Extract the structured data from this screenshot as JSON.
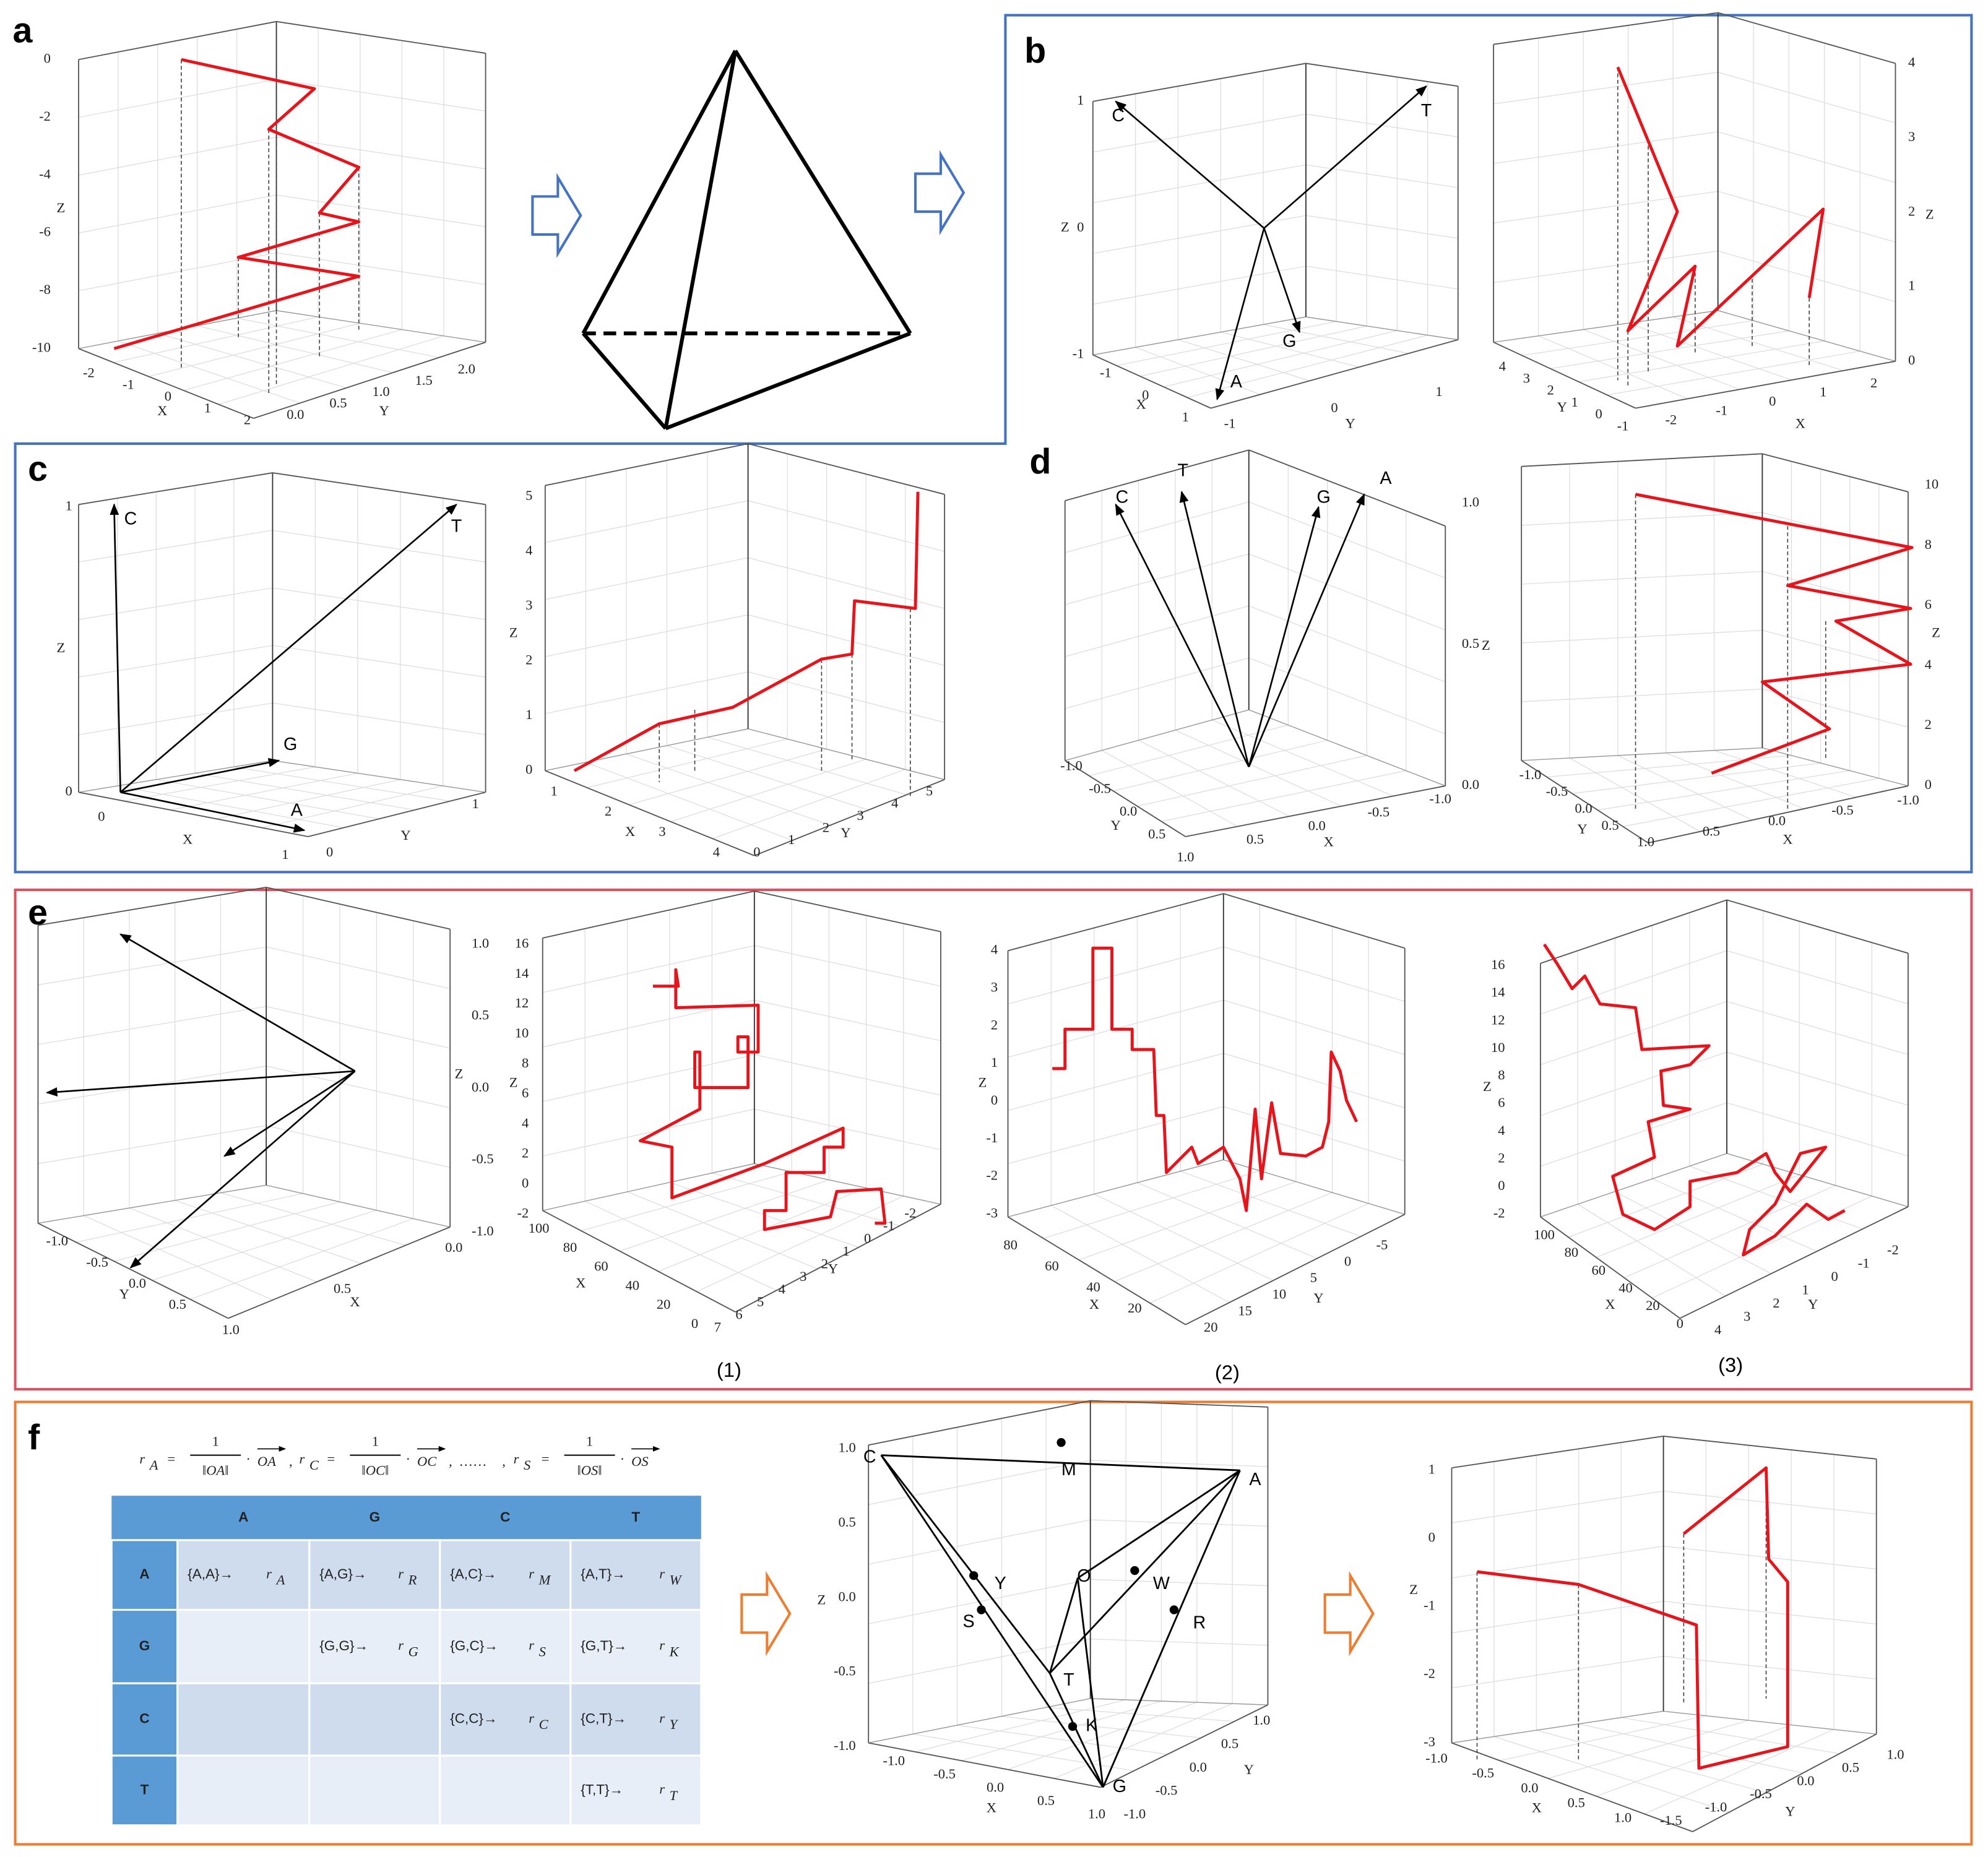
{
  "panel_labels": [
    "a",
    "b",
    "c",
    "d",
    "e",
    "f"
  ],
  "plots": [
    {
      "z_label": "Z",
      "x_label": "X",
      "y_label": "Y",
      "z_ticks": [
        "0",
        "-2",
        "-4",
        "-6",
        "-8",
        "-10"
      ],
      "x_ticks": [
        "-2",
        "-1",
        "0",
        "1",
        "2"
      ],
      "y_ticks": [
        "0.0",
        "0.5",
        "1.0",
        "1.5",
        "2.0"
      ]
    },
    {
      "z_label": "Z",
      "x_label": "X",
      "y_label": "Y",
      "z_ticks": [
        "1",
        "0",
        "-1"
      ],
      "x_ticks": [
        "-1",
        "0",
        "1"
      ],
      "y_ticks": [
        "-1",
        "0",
        "1"
      ],
      "vector_labels": [
        "C",
        "T",
        "G",
        "A"
      ]
    },
    {
      "z_label": "Z",
      "x_label": "X",
      "y_label": "Y",
      "z_ticks": [
        "0",
        "1",
        "2",
        "3",
        "4"
      ],
      "x_ticks": [
        "-2",
        "-1",
        "0",
        "1",
        "2"
      ],
      "y_ticks": [
        "4",
        "3",
        "2",
        "1",
        "0",
        "-1"
      ]
    },
    {
      "z_label": "Z",
      "x_label": "X",
      "y_label": "Y",
      "z_ticks": [
        "1",
        "0"
      ],
      "x_ticks": [
        "0",
        "1"
      ],
      "y_ticks": [
        "0",
        "1"
      ],
      "vector_labels": [
        "C",
        "T",
        "G",
        "A"
      ]
    },
    {
      "z_label": "Z",
      "x_label": "X",
      "y_label": "Y",
      "z_ticks": [
        "0",
        "1",
        "2",
        "3",
        "4",
        "5"
      ],
      "x_ticks": [
        "1",
        "2",
        "3",
        "4"
      ],
      "y_ticks": [
        "0",
        "1",
        "2",
        "3",
        "4",
        "5"
      ]
    },
    {
      "z_label": "Z",
      "x_label": "X",
      "y_label": "Y",
      "z_ticks": [
        "1.0",
        "0.5",
        "0.0"
      ],
      "x_ticks": [
        "-1.0",
        "-0.5",
        "0.0",
        "0.5"
      ],
      "y_ticks": [
        "-1.0",
        "-0.5",
        "0.0",
        "0.5",
        "1.0"
      ],
      "vector_labels": [
        "C",
        "T",
        "G",
        "A"
      ]
    },
    {
      "z_label": "Z",
      "x_label": "X",
      "y_label": "Y",
      "z_ticks": [
        "0",
        "2",
        "4",
        "6",
        "8",
        "10"
      ],
      "x_ticks": [
        "1.0",
        "0.5",
        "0.0",
        "-0.5",
        "-1.0"
      ],
      "y_ticks": [
        "-1.0",
        "-0.5",
        "0.0",
        "0.5"
      ]
    },
    {
      "z_label": "Z",
      "x_label": "X",
      "y_label": "Y",
      "z_ticks": [
        "1.0",
        "0.5",
        "0.0",
        "-0.5",
        "-1.0"
      ],
      "x_ticks": [
        "0.0",
        "0.5",
        "1.0"
      ],
      "y_ticks": [
        "-1.0",
        "-0.5",
        "0.0",
        "0.5"
      ]
    },
    {
      "z_label": "Z",
      "x_label": "X",
      "y_label": "Y",
      "z_ticks": [
        "16",
        "14",
        "12",
        "10",
        "8",
        "6",
        "4",
        "2",
        "0",
        "-2"
      ],
      "x_ticks": [
        "100",
        "80",
        "60",
        "40",
        "20",
        "0"
      ],
      "y_ticks": [
        "7",
        "6",
        "5",
        "4",
        "3",
        "2",
        "1",
        "0",
        "-1",
        "-2"
      ]
    },
    {
      "z_label": "Z",
      "x_label": "X",
      "y_label": "Y",
      "z_ticks": [
        "4",
        "3",
        "2",
        "1",
        "0",
        "-1",
        "-2",
        "-3"
      ],
      "x_ticks": [
        "80",
        "60",
        "40",
        "20"
      ],
      "y_ticks": [
        "20",
        "15",
        "10",
        "5",
        "0",
        "-5"
      ]
    },
    {
      "z_label": "Z",
      "x_label": "X",
      "y_label": "Y",
      "z_ticks": [
        "16",
        "14",
        "12",
        "10",
        "8",
        "6",
        "4",
        "2",
        "0",
        "-2"
      ],
      "x_ticks": [
        "100",
        "80",
        "60",
        "40",
        "20",
        "0"
      ],
      "y_ticks": [
        "4",
        "3",
        "2",
        "1",
        "0",
        "-1",
        "-2"
      ]
    },
    {
      "z_label": "Z",
      "x_label": "X",
      "y_label": "Y",
      "z_ticks": [
        "1.0",
        "0.5",
        "0.0",
        "-0.5",
        "-1.0"
      ],
      "x_ticks": [
        "-1.0",
        "-0.5",
        "0.0",
        "0.5",
        "1.0"
      ],
      "y_ticks": [
        "1.0",
        "0.5",
        "0.0",
        "-0.5",
        "-1.0"
      ],
      "point_labels": [
        "C",
        "A",
        "M",
        "O",
        "Y",
        "S",
        "W",
        "R",
        "T",
        "K",
        "G"
      ]
    },
    {
      "z_label": "Z",
      "x_label": "X",
      "y_label": "Y",
      "z_ticks": [
        "1",
        "0",
        "-1",
        "-2",
        "-3"
      ],
      "x_ticks": [
        "-1.0",
        "-0.5",
        "0.0",
        "0.5",
        "1.0"
      ],
      "y_ticks": [
        "-1.5",
        "-1.0",
        "-0.5",
        "0.0",
        "0.5",
        "1.0"
      ]
    }
  ],
  "subplot_labels": [
    "(1)",
    "(2)",
    "(3)"
  ],
  "formula": {
    "terms": [
      {
        "var": "r",
        "sub": "A",
        "equals": "=",
        "numerator": "1",
        "denominator": "‖OA‖",
        "dot": "·",
        "vector": "OA"
      },
      {
        "var": "r",
        "sub": "C",
        "equals": "=",
        "numerator": "1",
        "denominator": "‖OC‖",
        "dot": "·",
        "vector": "OC"
      },
      {
        "var": "r",
        "sub": "S",
        "equals": "=",
        "numerator": "1",
        "denominator": "‖OS‖",
        "dot": "·",
        "vector": "OS"
      }
    ],
    "separator": ",",
    "ellipsis": "……"
  },
  "table": {
    "columns": [
      "A",
      "G",
      "C",
      "T"
    ],
    "rows": [
      {
        "label": "A",
        "cells": [
          {
            "pair": "{A,A}→",
            "var": "r",
            "sub": "A"
          },
          {
            "pair": "{A,G}→",
            "var": "r",
            "sub": "R"
          },
          {
            "pair": "{A,C}→",
            "var": "r",
            "sub": "M"
          },
          {
            "pair": "{A,T}→",
            "var": "r",
            "sub": "W"
          }
        ]
      },
      {
        "label": "G",
        "cells": [
          null,
          {
            "pair": "{G,G}→",
            "var": "r",
            "sub": "G"
          },
          {
            "pair": "{G,C}→",
            "var": "r",
            "sub": "S"
          },
          {
            "pair": "{G,T}→",
            "var": "r",
            "sub": "K"
          }
        ]
      },
      {
        "label": "C",
        "cells": [
          null,
          null,
          {
            "pair": "{C,C}→",
            "var": "r",
            "sub": "C"
          },
          {
            "pair": "{C,T}→",
            "var": "r",
            "sub": "Y"
          }
        ]
      },
      {
        "label": "T",
        "cells": [
          null,
          null,
          null,
          {
            "pair": "{T,T}→",
            "var": "r",
            "sub": "T"
          }
        ]
      }
    ]
  }
}
